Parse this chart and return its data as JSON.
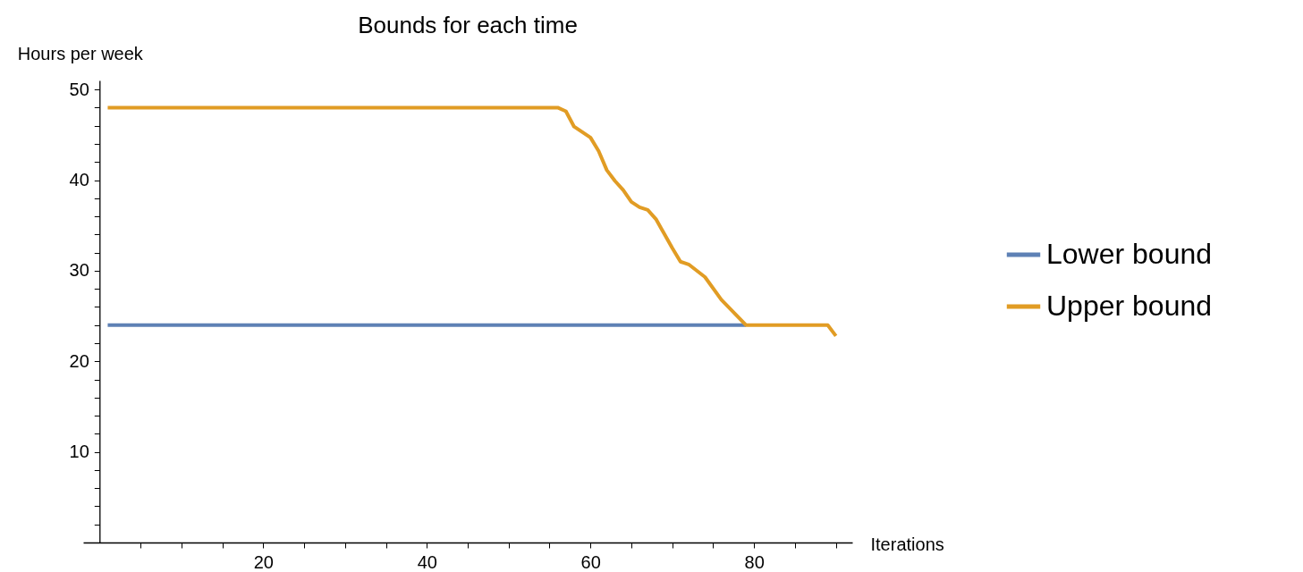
{
  "chart_data": {
    "type": "line",
    "title": "Bounds for each time",
    "xlabel": "Iterations",
    "ylabel": "Hours per week",
    "xlim": [
      -2,
      92
    ],
    "ylim": [
      0,
      51
    ],
    "xticks": [
      {
        "value": 5,
        "label": null
      },
      {
        "value": 10,
        "label": null
      },
      {
        "value": 15,
        "label": null
      },
      20,
      {
        "value": 25,
        "label": null
      },
      {
        "value": 30,
        "label": null
      },
      {
        "value": 35,
        "label": null
      },
      40,
      {
        "value": 45,
        "label": null
      },
      {
        "value": 50,
        "label": null
      },
      {
        "value": 55,
        "label": null
      },
      60,
      {
        "value": 65,
        "label": null
      },
      {
        "value": 70,
        "label": null
      },
      {
        "value": 75,
        "label": null
      },
      80,
      {
        "value": 85,
        "label": null
      },
      {
        "value": 90,
        "label": null
      }
    ],
    "yticks": [
      {
        "value": 2,
        "label": null
      },
      {
        "value": 4,
        "label": null
      },
      {
        "value": 6,
        "label": null
      },
      {
        "value": 8,
        "label": null
      },
      10,
      {
        "value": 12,
        "label": null
      },
      {
        "value": 14,
        "label": null
      },
      {
        "value": 16,
        "label": null
      },
      {
        "value": 18,
        "label": null
      },
      20,
      {
        "value": 22,
        "label": null
      },
      {
        "value": 24,
        "label": null
      },
      {
        "value": 26,
        "label": null
      },
      {
        "value": 28,
        "label": null
      },
      30,
      {
        "value": 32,
        "label": null
      },
      {
        "value": 34,
        "label": null
      },
      {
        "value": 36,
        "label": null
      },
      {
        "value": 38,
        "label": null
      },
      40,
      {
        "value": 42,
        "label": null
      },
      {
        "value": 44,
        "label": null
      },
      {
        "value": 46,
        "label": null
      },
      {
        "value": 48,
        "label": null
      },
      50
    ],
    "legend": "right",
    "grid": false,
    "series": [
      {
        "name": "Lower bound",
        "color": "#5e81b5",
        "x": [
          1,
          79
        ],
        "values": [
          24,
          24
        ]
      },
      {
        "name": "Upper bound",
        "color": "#e19c24",
        "x": [
          1,
          56,
          57,
          58,
          60,
          61,
          62,
          63,
          64,
          65,
          66,
          67,
          68,
          69,
          70,
          71,
          72,
          74,
          76,
          79,
          89,
          90
        ],
        "values": [
          48,
          48,
          47.6,
          45.9,
          44.7,
          43.2,
          41.1,
          39.9,
          38.9,
          37.6,
          37.0,
          36.7,
          35.7,
          34.1,
          32.5,
          31.0,
          30.7,
          29.3,
          26.8,
          24,
          24,
          22.8
        ]
      }
    ]
  }
}
